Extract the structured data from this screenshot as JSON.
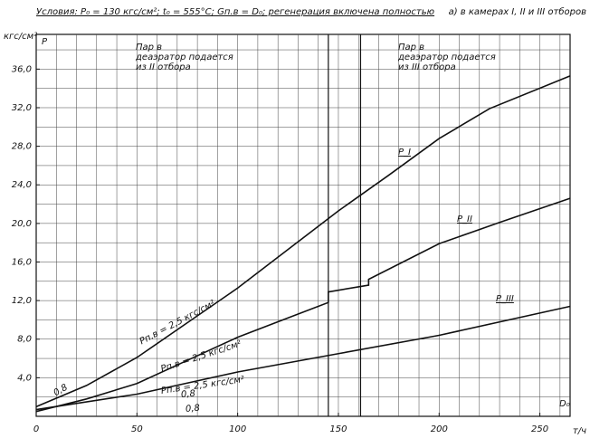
{
  "chart_data": {
    "type": "line",
    "title": "Условия: P₀ = 130 кгс/см²; t₀ = 555°C; Gп.в = D₀; регенерация включена полностью",
    "subtitle": "а) в камерах I, II и III отборов",
    "y_unit": "кгс/см²",
    "y_label": "P",
    "x_label": "D₀",
    "x_unit": "т/ч",
    "xlim": [
      0,
      265
    ],
    "ylim": [
      0,
      39.6
    ],
    "xticks": [
      0,
      50,
      100,
      150,
      200,
      250
    ],
    "yticks": [
      {
        "value": 4,
        "label": "4,0"
      },
      {
        "value": 8,
        "label": "8,0"
      },
      {
        "value": 12,
        "label": "12,0"
      },
      {
        "value": 16,
        "label": "16,0"
      },
      {
        "value": 20,
        "label": "20,0"
      },
      {
        "value": 24,
        "label": "24,0"
      },
      {
        "value": 28,
        "label": "28,0"
      },
      {
        "value": 32,
        "label": "32,0"
      },
      {
        "value": 36,
        "label": "36,0"
      }
    ],
    "grid": true,
    "vlines": [
      145,
      161
    ],
    "series": [
      {
        "name": "P_I",
        "color": "#111",
        "x": [
          0,
          25,
          50,
          75,
          100,
          125,
          150,
          175,
          200,
          225,
          265
        ],
        "values": [
          1.0,
          3.2,
          6.1,
          9.7,
          13.3,
          17.3,
          21.3,
          25.0,
          28.8,
          31.9,
          35.3
        ]
      },
      {
        "name": "P_II",
        "color": "#111",
        "x": [
          0,
          25,
          50,
          75,
          100,
          125,
          145,
          145,
          165,
          165,
          200,
          230,
          265
        ],
        "values": [
          0.5,
          1.8,
          3.4,
          5.8,
          8.2,
          10.2,
          11.8,
          12.9,
          13.6,
          14.2,
          17.9,
          20.1,
          22.6
        ]
      },
      {
        "name": "P_III",
        "color": "#111",
        "x": [
          0,
          50,
          100,
          150,
          200,
          265
        ],
        "values": [
          0.7,
          2.3,
          4.6,
          6.5,
          8.4,
          11.4
        ]
      }
    ],
    "annotations": [
      "Пар в деаэратор подается из II отбора",
      "Пар в деаэратор подается из III отбора",
      "Pп.в = 2,5 кгс/см²",
      "Pп.в = 2,5 кгс/см²",
      "Pп.в = 2,5 кгс/см²",
      "0,8",
      "0,8",
      "0,8"
    ]
  }
}
